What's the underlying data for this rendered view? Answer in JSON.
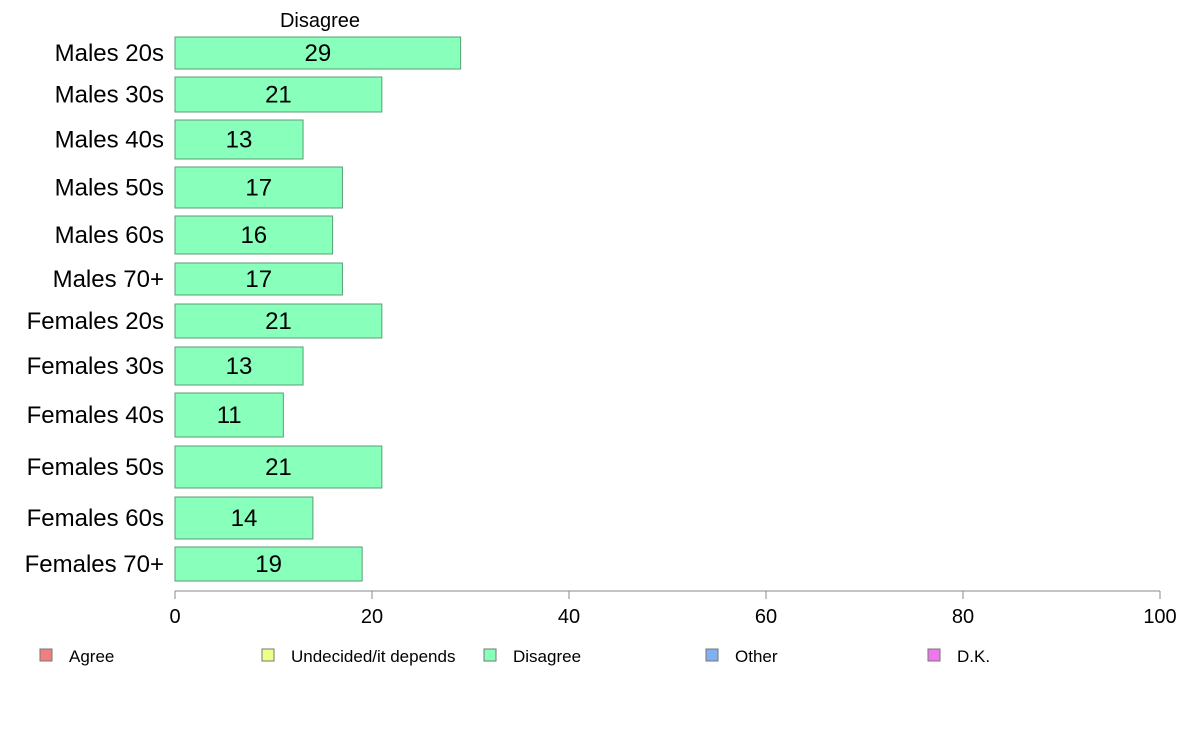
{
  "chart_data": {
    "type": "bar",
    "orientation": "horizontal",
    "header": "Disagree",
    "categories": [
      "Males 20s",
      "Males 30s",
      "Males 40s",
      "Males 50s",
      "Males 60s",
      "Males 70+",
      "Females 20s",
      "Females 30s",
      "Females 40s",
      "Females 50s",
      "Females 60s",
      "Females 70+"
    ],
    "values": [
      29,
      21,
      13,
      17,
      16,
      17,
      21,
      13,
      11,
      21,
      14,
      19
    ],
    "bar_color": "#88ffbb",
    "xlim": [
      0,
      100
    ],
    "xticks": [
      0,
      20,
      40,
      60,
      80,
      100
    ],
    "legend_position": "bottom",
    "legend": [
      {
        "label": "Agree",
        "color": "#f08080"
      },
      {
        "label": "Undecided/it depends",
        "color": "#eeff88"
      },
      {
        "label": "Disagree",
        "color": "#88ffbb"
      },
      {
        "label": "Other",
        "color": "#80b0f0"
      },
      {
        "label": "D.K.",
        "color": "#ee77ee"
      }
    ]
  }
}
